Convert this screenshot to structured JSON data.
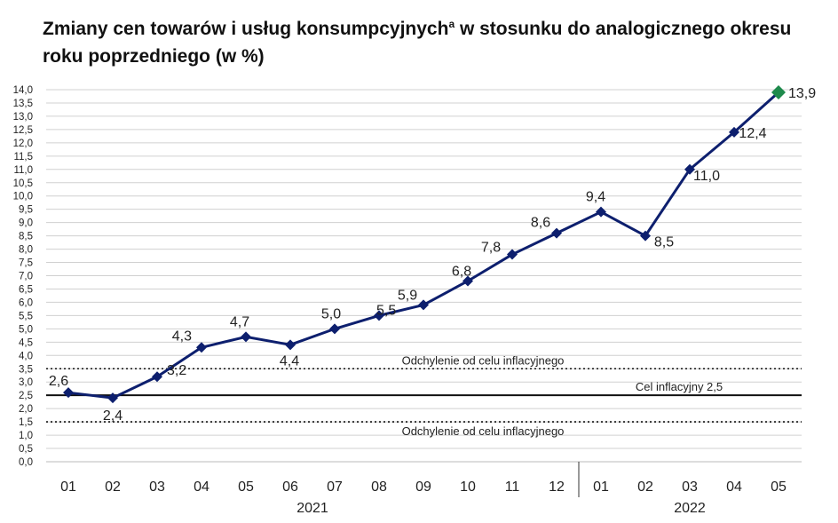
{
  "chart_data": {
    "type": "line",
    "title": "Zmiany cen towarów i usług konsumpcyjnych",
    "title_superscript": "a",
    "title_rest": " w stosunku do analogicznego okresu roku poprzedniego (w %)",
    "categories": [
      "01",
      "02",
      "03",
      "04",
      "05",
      "06",
      "07",
      "08",
      "09",
      "10",
      "11",
      "12",
      "01",
      "02",
      "03",
      "04",
      "05"
    ],
    "groups": [
      {
        "label": "2021",
        "count": 12
      },
      {
        "label": "2022",
        "count": 5
      }
    ],
    "series": [
      {
        "values": [
          2.6,
          2.4,
          3.2,
          4.3,
          4.7,
          4.4,
          5.0,
          5.5,
          5.9,
          6.8,
          7.8,
          8.6,
          9.4,
          8.5,
          11.0,
          12.4,
          13.9
        ]
      }
    ],
    "data_labels": [
      "2,6",
      "2,4",
      "3,2",
      "4,3",
      "4,7",
      "4,4",
      "5,0",
      "5,5",
      "5,9",
      "6,8",
      "7,8",
      "8,6",
      "9,4",
      "8,5",
      "11,0",
      "12,4",
      "13,9"
    ],
    "ylim": [
      0,
      14
    ],
    "ystep": 0.5,
    "ytick_labels": [
      "0,0",
      "0,5",
      "1,0",
      "1,5",
      "2,0",
      "2,5",
      "3,0",
      "3,5",
      "4,0",
      "4,5",
      "5,0",
      "5,5",
      "6,0",
      "6,5",
      "7,0",
      "7,5",
      "8,0",
      "8,5",
      "9,0",
      "9,5",
      "10,0",
      "10,5",
      "11,0",
      "11,5",
      "12,0",
      "12,5",
      "13,0",
      "13,5",
      "14,0"
    ],
    "reference_lines": [
      {
        "value": 3.5,
        "style": "dotted",
        "label": "Odchylenie od celu inflacyjnego"
      },
      {
        "value": 2.5,
        "style": "solid",
        "label": "Cel inflacyjny 2,5"
      },
      {
        "value": 1.5,
        "style": "dotted",
        "label": "Odchylenie od celu inflacyjnego"
      }
    ],
    "grid": true,
    "line_color": "#0d1f6e",
    "last_point_color": "#1e8a4c",
    "grid_color": "#d0d0d0"
  }
}
